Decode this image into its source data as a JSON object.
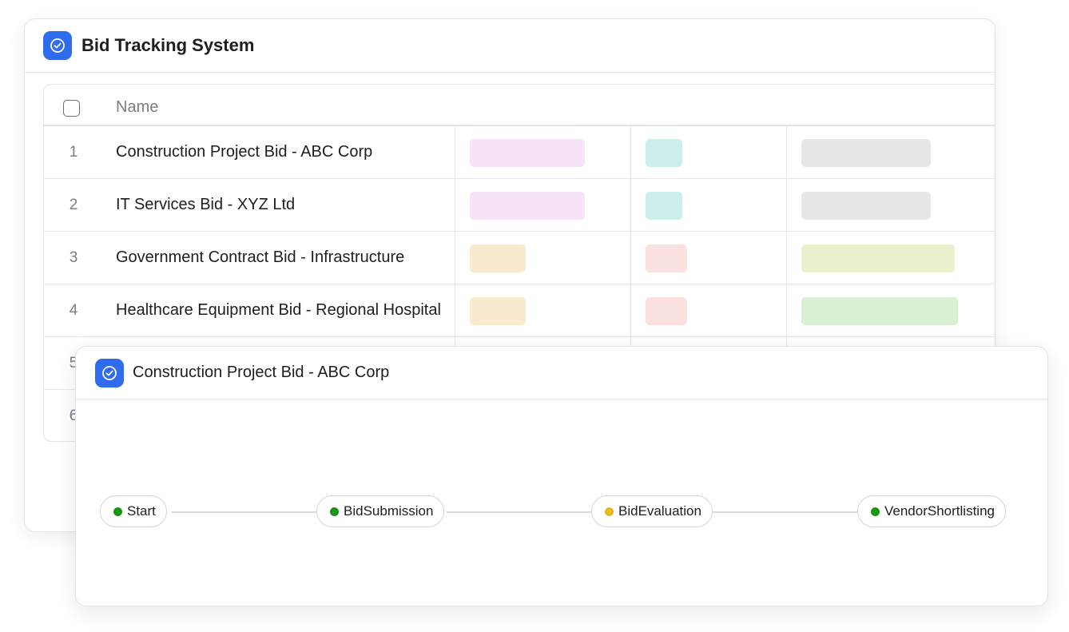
{
  "back_window": {
    "title": "Bid Tracking System",
    "icon": "check-circle-icon",
    "accent_color": "#2f6bed",
    "table": {
      "column_header": "Name",
      "rows": [
        {
          "num": "1",
          "name": "Construction Project Bid - ABC Corp",
          "tags": [
            "#f6e3f7",
            "#cdefec",
            "#e6e7e9"
          ]
        },
        {
          "num": "2",
          "name": "IT Services Bid - XYZ Ltd",
          "tags": [
            "#f6e3f7",
            "#cdefec",
            "#e6e7e9"
          ]
        },
        {
          "num": "3",
          "name": "Government Contract Bid - Infrastructure",
          "tags": [
            "#f8e9cf",
            "#fbe2e0",
            "#ebf0cd"
          ]
        },
        {
          "num": "4",
          "name": "Healthcare Equipment Bid - Regional Hospital",
          "tags": [
            "#f8e9cf",
            "#fbe2e0",
            "#d9f1d3"
          ]
        },
        {
          "num": "5",
          "name": ""
        },
        {
          "num": "6",
          "name": ""
        }
      ]
    }
  },
  "front_window": {
    "title": "Construction Project Bid - ABC Corp",
    "icon": "check-circle-icon",
    "flow_nodes": [
      {
        "label": "Start",
        "status": "complete",
        "color": "#1a9a12"
      },
      {
        "label": "BidSubmission",
        "status": "complete",
        "color": "#1a9a12"
      },
      {
        "label": "BidEvaluation",
        "status": "in-progress",
        "color": "#f2c01b"
      },
      {
        "label": "VendorShortlisting",
        "status": "complete",
        "color": "#1a9a12"
      }
    ]
  }
}
